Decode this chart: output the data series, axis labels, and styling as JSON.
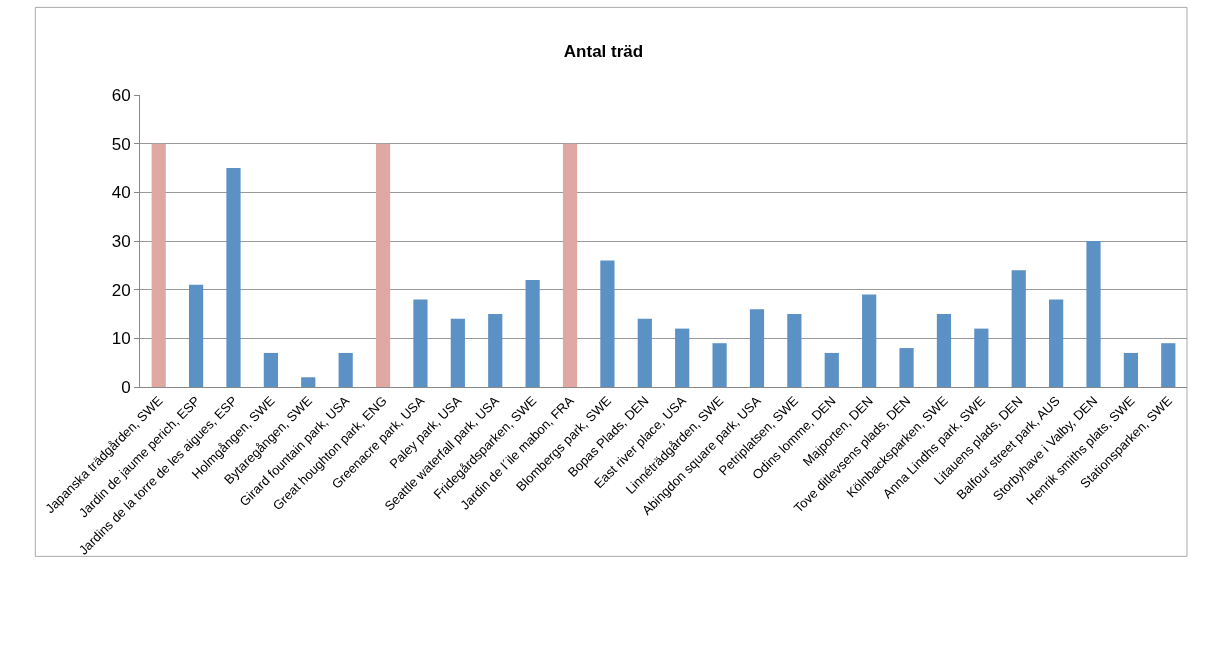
{
  "chart_data": {
    "type": "bar",
    "title": "Antal träd",
    "categories": [
      "Japanska trädgården, SWE",
      "Jardin de jaume perich, ESP",
      "Jardins de la torre de les aigues, ESP",
      "Holmgången, SWE",
      "Bytaregången, SWE",
      "Girard fountain park, USA",
      "Great houghton park, ENG",
      "Greenacre park, USA",
      "Paley park, USA",
      "Seattle waterfall park, USA",
      "Fridegårdsparken, SWE",
      "Jardin de l´ile mabon, FRA",
      "Blombergs park, SWE",
      "Bopas Plads, DEN",
      "East river place, USA",
      "Linnéträdgården, SWE",
      "Abingdon square park, USA",
      "Petriplatsen, SWE",
      "Odins lomme, DEN",
      "Majporten, DEN",
      "Tove ditlevsens plads, DEN",
      "Kölnbacksparken, SWE",
      "Anna Lindhs park, SWE",
      "Litauens plads, DEN",
      "Balfour street park, AUS",
      "Storbyhave i Valby, DEN",
      "Henrik smiths plats, SWE",
      "Stationsparken, SWE"
    ],
    "values": [
      50,
      21,
      45,
      7,
      2,
      7,
      50,
      18,
      14,
      15,
      22,
      50,
      26,
      14,
      12,
      9,
      16,
      15,
      7,
      19,
      8,
      15,
      12,
      24,
      18,
      30,
      7,
      9
    ],
    "colors": [
      "#e0a8a3",
      "#5b91c5",
      "#5b91c5",
      "#5b91c5",
      "#5b91c5",
      "#5b91c5",
      "#e0a8a3",
      "#5b91c5",
      "#5b91c5",
      "#5b91c5",
      "#5b91c5",
      "#e0a8a3",
      "#5b91c5",
      "#5b91c5",
      "#5b91c5",
      "#5b91c5",
      "#5b91c5",
      "#5b91c5",
      "#5b91c5",
      "#5b91c5",
      "#5b91c5",
      "#5b91c5",
      "#5b91c5",
      "#5b91c5",
      "#5b91c5",
      "#5b91c5",
      "#5b91c5",
      "#5b91c5"
    ],
    "ylim": [
      0,
      60
    ],
    "yticks": [
      0,
      10,
      20,
      30,
      40,
      50,
      60
    ],
    "grid": "y"
  }
}
